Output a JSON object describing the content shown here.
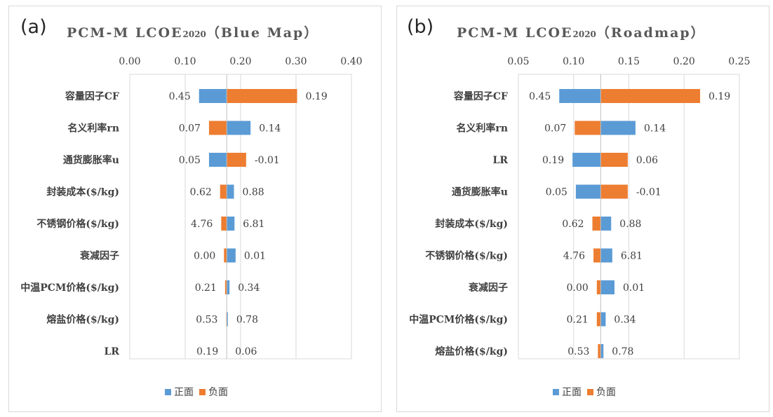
{
  "colors": {
    "positive": "#5b9bd5",
    "negative": "#ed7d31",
    "grid": "#d9d9d9",
    "text": "#404040"
  },
  "legend": {
    "positive_label": "正面",
    "negative_label": "负面"
  },
  "chart_data": [
    {
      "type": "bar",
      "orientation": "horizontal",
      "panel_label": "(a)",
      "title_main": "PCM-M LCOE",
      "title_sub": "2020",
      "title_tail": "（Blue Map）",
      "title": "PCM-M LCOE2020（Blue Map）",
      "xlim": [
        0,
        0.4
      ],
      "xticks": [
        "0.00",
        "0.10",
        "0.20",
        "0.30",
        "0.40"
      ],
      "tick_values": [
        0,
        0.1,
        0.2,
        0.3,
        0.4
      ],
      "base": 0.175,
      "grid": true,
      "legend_position": "bottom",
      "rows": [
        {
          "label": "容量因子CF",
          "blue": [
            0.125,
            0.175
          ],
          "orange": [
            0.175,
            0.302
          ],
          "left_label": "0.45",
          "right_label": "0.19"
        },
        {
          "label": "名义利率rn",
          "blue": [
            0.175,
            0.218
          ],
          "orange": [
            0.143,
            0.175
          ],
          "left_label": "0.07",
          "right_label": "0.14"
        },
        {
          "label": "通货膨胀率u",
          "blue": [
            0.143,
            0.175
          ],
          "orange": [
            0.175,
            0.21
          ],
          "left_label": "0.05",
          "right_label": "-0.01"
        },
        {
          "label": "封装成本($/kg)",
          "blue": [
            0.175,
            0.188
          ],
          "orange": [
            0.163,
            0.175
          ],
          "left_label": "0.62",
          "right_label": "0.88"
        },
        {
          "label": "不锈钢价格($/kg)",
          "blue": [
            0.175,
            0.189
          ],
          "orange": [
            0.165,
            0.175
          ],
          "left_label": "4.76",
          "right_label": "6.81"
        },
        {
          "label": "衰减因子",
          "blue": [
            0.175,
            0.191
          ],
          "orange": [
            0.17,
            0.175
          ],
          "left_label": "0.00",
          "right_label": "0.01"
        },
        {
          "label": "中温PCM价格($/kg)",
          "blue": [
            0.175,
            0.18
          ],
          "orange": [
            0.172,
            0.175
          ],
          "left_label": "0.21",
          "right_label": "0.34"
        },
        {
          "label": "熔盐价格($/kg)",
          "blue": [
            0.175,
            0.177
          ],
          "orange": [
            0.174,
            0.175
          ],
          "left_label": "0.53",
          "right_label": "0.78"
        },
        {
          "label": "LR",
          "blue": [
            0.175,
            0.175
          ],
          "orange": [
            0.175,
            0.175
          ],
          "left_label": "0.19",
          "right_label": "0.06"
        }
      ]
    },
    {
      "type": "bar",
      "orientation": "horizontal",
      "panel_label": "(b)",
      "title_main": "PCM-M LCOE",
      "title_sub": "2020",
      "title_tail": "（Roadmap）",
      "title": "PCM-M LCOE2020（Roadmap）",
      "xlim": [
        0.05,
        0.25
      ],
      "xticks": [
        "0.05",
        "0.10",
        "0.15",
        "0.20",
        "0.25"
      ],
      "tick_values": [
        0.05,
        0.1,
        0.15,
        0.2,
        0.25
      ],
      "base": 0.1245,
      "grid": true,
      "legend_position": "bottom",
      "rows": [
        {
          "label": "容量因子CF",
          "blue": [
            0.087,
            0.1245
          ],
          "orange": [
            0.1245,
            0.2145
          ],
          "left_label": "0.45",
          "right_label": "0.19"
        },
        {
          "label": "名义利率rn",
          "blue": [
            0.1245,
            0.156
          ],
          "orange": [
            0.101,
            0.1245
          ],
          "left_label": "0.07",
          "right_label": "0.14"
        },
        {
          "label": "LR",
          "blue": [
            0.099,
            0.1245
          ],
          "orange": [
            0.1245,
            0.149
          ],
          "left_label": "0.19",
          "right_label": "0.06"
        },
        {
          "label": "通货膨胀率u",
          "blue": [
            0.102,
            0.1245
          ],
          "orange": [
            0.1245,
            0.149
          ],
          "left_label": "0.05",
          "right_label": "-0.01"
        },
        {
          "label": "封装成本($/kg)",
          "blue": [
            0.1245,
            0.134
          ],
          "orange": [
            0.117,
            0.1245
          ],
          "left_label": "0.62",
          "right_label": "0.88"
        },
        {
          "label": "不锈钢价格($/kg)",
          "blue": [
            0.1245,
            0.135
          ],
          "orange": [
            0.118,
            0.1245
          ],
          "left_label": "4.76",
          "right_label": "6.81"
        },
        {
          "label": "衰减因子",
          "blue": [
            0.1245,
            0.137
          ],
          "orange": [
            0.121,
            0.1245
          ],
          "left_label": "0.00",
          "right_label": "0.01"
        },
        {
          "label": "中温PCM价格($/kg)",
          "blue": [
            0.1245,
            0.129
          ],
          "orange": [
            0.121,
            0.1245
          ],
          "left_label": "0.21",
          "right_label": "0.34"
        },
        {
          "label": "熔盐价格($/kg)",
          "blue": [
            0.1245,
            0.127
          ],
          "orange": [
            0.122,
            0.1245
          ],
          "left_label": "0.53",
          "right_label": "0.78"
        }
      ]
    }
  ]
}
